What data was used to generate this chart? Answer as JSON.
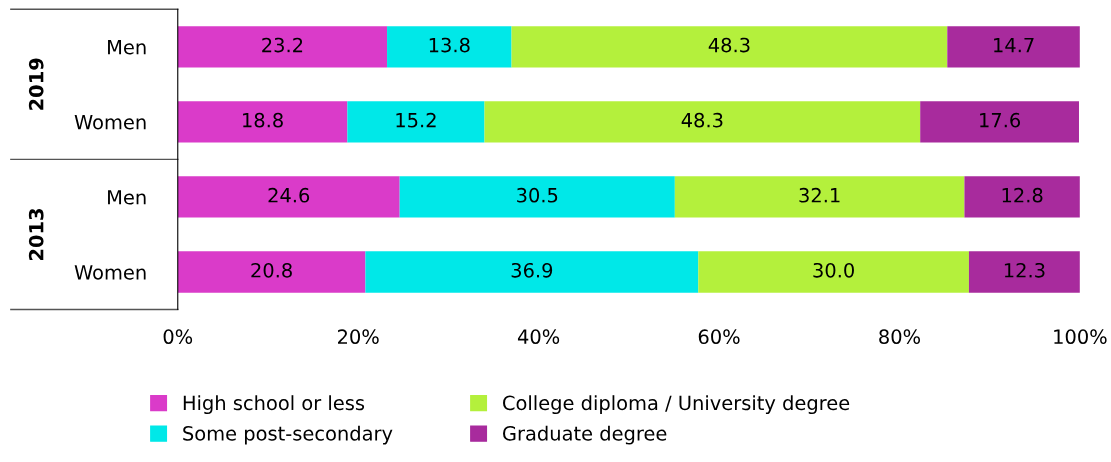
{
  "chart_data": {
    "type": "bar",
    "orientation": "horizontal",
    "stacked": true,
    "categories": [
      "Men",
      "Women",
      "Men",
      "Women"
    ],
    "annotations": [
      "2019",
      "2013"
    ],
    "series": [
      {
        "name": "High school or less",
        "color": "#da3bc9",
        "values": [
          23.2,
          18.8,
          24.6,
          20.8
        ],
        "value_labels": [
          "23.2",
          "18.8",
          "24.6",
          "20.8"
        ]
      },
      {
        "name": "Some post-secondary",
        "color": "#00e8e8",
        "values": [
          13.8,
          15.2,
          30.5,
          36.9
        ],
        "value_labels": [
          "13.8",
          "15.2",
          "30.5",
          "36.9"
        ]
      },
      {
        "name": "College diploma / University degree",
        "color": "#b4f03c",
        "values": [
          48.3,
          48.3,
          32.1,
          30.0
        ],
        "value_labels": [
          "48.3",
          "48.3",
          "32.1",
          "30.0"
        ]
      },
      {
        "name": "Graduate degree",
        "color": "#a82b9d",
        "values": [
          14.7,
          17.6,
          12.8,
          12.3
        ],
        "value_labels": [
          "14.7",
          "17.6",
          "12.8",
          "12.3"
        ]
      }
    ],
    "xlim": [
      0,
      100
    ],
    "xticks": [
      {
        "value": 0,
        "label": "0%"
      },
      {
        "value": 20,
        "label": "20%"
      },
      {
        "value": 40,
        "label": "40%"
      },
      {
        "value": 60,
        "label": "60%"
      },
      {
        "value": 80,
        "label": "80%"
      },
      {
        "value": 100,
        "label": "100%"
      }
    ],
    "grid": false,
    "legend": "bottom"
  }
}
